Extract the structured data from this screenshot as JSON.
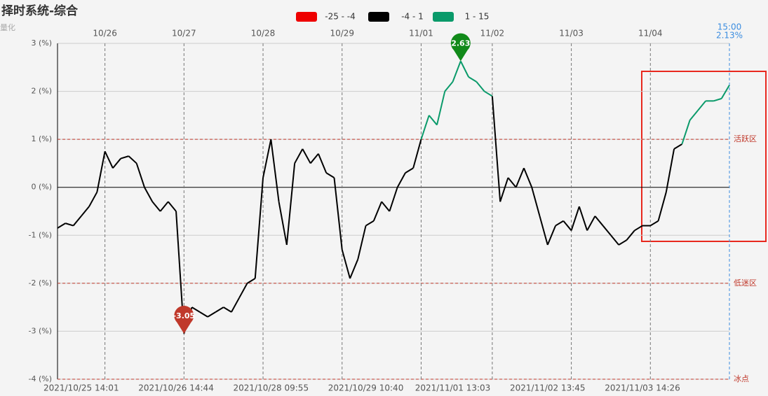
{
  "chart_data": {
    "type": "line",
    "title": "择时系统-综合",
    "subtitle": "量化",
    "color_ranges": [
      {
        "label": "-25 - -4",
        "min": -25,
        "max": -4,
        "color": "#ee0000"
      },
      {
        "label": "-4 - 1",
        "min": -4,
        "max": 1,
        "color": "#000000"
      },
      {
        "label": "1 - 15",
        "min": 1,
        "max": 15,
        "color": "#0a9a6a"
      }
    ],
    "series": [
      {
        "values": [
          -0.85,
          -0.75,
          -0.8,
          -0.6,
          -0.4,
          -0.1,
          0.75,
          0.4,
          0.6,
          0.65,
          0.5,
          0.0,
          -0.3,
          -0.5,
          -0.3,
          -0.5,
          -3.05,
          -2.5,
          -2.6,
          -2.7,
          -2.6,
          -2.5,
          -2.6,
          -2.3,
          -2.0,
          -1.9,
          0.2,
          1.0,
          -0.3,
          -1.2,
          0.5,
          0.8,
          0.5,
          0.7,
          0.3,
          0.2,
          -1.3,
          -1.9,
          -1.5,
          -0.8,
          -0.7,
          -0.3,
          -0.5,
          0.0,
          0.3,
          0.4,
          1.0,
          1.5,
          1.3,
          2.0,
          2.2,
          2.63,
          2.3,
          2.2,
          2.0,
          1.9,
          -0.3,
          0.2,
          0.0,
          0.4,
          0.0,
          -0.6,
          -1.2,
          -0.8,
          -0.7,
          -0.9,
          -0.4,
          -0.9,
          -0.6,
          -0.8,
          -1.0,
          -1.2,
          -1.1,
          -0.9,
          -0.8,
          -0.8,
          -0.7,
          -0.1,
          0.8,
          0.9,
          1.4,
          1.6,
          1.8,
          1.8,
          1.85,
          2.13
        ]
      }
    ],
    "end_value_label": "2.13%",
    "xlim": [
      0,
      85
    ],
    "ylim": [
      -4,
      3
    ],
    "yticks": [
      {
        "value": -4,
        "label": "-4 (%)"
      },
      {
        "value": -3,
        "label": "-3 (%)"
      },
      {
        "value": -2,
        "label": "-2 (%)"
      },
      {
        "value": -1,
        "label": "-1 (%)"
      },
      {
        "value": 0,
        "label": "0 (%)"
      },
      {
        "value": 1,
        "label": "1 (%)"
      },
      {
        "value": 2,
        "label": "2 (%)"
      },
      {
        "value": 3,
        "label": "3 (%)"
      }
    ],
    "top_ticks": [
      {
        "value": 6,
        "label": "10/26"
      },
      {
        "value": 16,
        "label": "10/27"
      },
      {
        "value": 26,
        "label": "10/28"
      },
      {
        "value": 36,
        "label": "10/29"
      },
      {
        "value": 46,
        "label": "11/01"
      },
      {
        "value": 55,
        "label": "11/02"
      },
      {
        "value": 65,
        "label": "11/03"
      },
      {
        "value": 75,
        "label": "11/04"
      },
      {
        "value": 85,
        "label": "15:00"
      }
    ],
    "xticks": [
      {
        "value": 3,
        "label": "2021/10/25 14:01"
      },
      {
        "value": 15,
        "label": "2021/10/26 14:44"
      },
      {
        "value": 27,
        "label": "2021/10/28 09:55"
      },
      {
        "value": 39,
        "label": "2021/10/29 10:40"
      },
      {
        "value": 50,
        "label": "2021/11/01 13:03"
      },
      {
        "value": 62,
        "label": "2021/11/02 13:45"
      },
      {
        "value": 74,
        "label": "2021/11/03 14:26"
      }
    ],
    "zones": [
      {
        "value": 1,
        "label": "活跃区"
      },
      {
        "value": -2,
        "label": "低迷区"
      },
      {
        "value": -4,
        "label": "冰点"
      }
    ],
    "grid": true
  }
}
